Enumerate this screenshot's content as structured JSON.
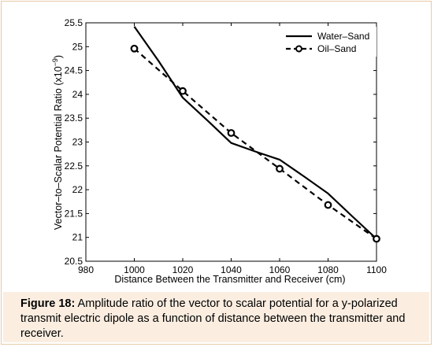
{
  "chart_data": {
    "type": "line",
    "title": "",
    "xlabel": "Distance Between the Transmitter and Receiver (cm)",
    "ylabel": "Vector–to–Scalar Potential Ratio (x10",
    "ylabel_exponent": "−9",
    "ylabel_suffix": ")",
    "xlim": [
      980,
      1100
    ],
    "ylim": [
      20.5,
      25.5
    ],
    "x_ticks": [
      980,
      1000,
      1020,
      1040,
      1060,
      1080,
      1100
    ],
    "y_ticks": [
      20.5,
      21,
      21.5,
      22,
      22.5,
      23,
      23.5,
      24,
      24.5,
      25,
      25.5
    ],
    "grid": false,
    "legend_position": "top-right",
    "series": [
      {
        "name": "Water–Sand",
        "style": "solid",
        "x": [
          1000,
          1010,
          1020,
          1030,
          1040,
          1050,
          1060,
          1070,
          1080,
          1090,
          1100
        ],
        "values": [
          25.42,
          24.7,
          23.93,
          23.46,
          22.98,
          22.8,
          22.63,
          22.28,
          21.92,
          21.44,
          20.97
        ]
      },
      {
        "name": "Oil–Sand",
        "style": "dashed-circle",
        "x": [
          1000,
          1020,
          1040,
          1060,
          1080,
          1100
        ],
        "values": [
          24.96,
          24.07,
          23.19,
          22.44,
          21.68,
          20.97
        ]
      }
    ]
  },
  "caption": {
    "label": "Figure 18:",
    "text": " Amplitude ratio of the vector to scalar potential for a y-polarized transmit electric dipole as a function of distance between the transmitter and receiver."
  }
}
